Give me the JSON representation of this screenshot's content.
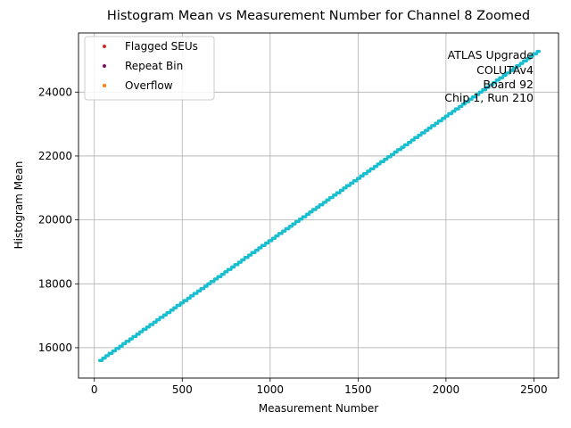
{
  "chart_data": {
    "type": "scatter",
    "title": "Histogram Mean vs Measurement Number for Channel 8 Zoomed",
    "xlabel": "Measurement Number",
    "ylabel": "Histogram Mean",
    "xlim": [
      -90,
      2640
    ],
    "ylim": [
      15050,
      25850
    ],
    "xticks": [
      0,
      500,
      1000,
      1500,
      2000,
      2500
    ],
    "yticks": [
      16000,
      18000,
      20000,
      22000,
      24000
    ],
    "grid": true,
    "legend_position": "upper-left",
    "legend": [
      {
        "label": "Flagged SEUs",
        "color": "#d62728"
      },
      {
        "label": "Repeat Bin",
        "color": "#7b1060"
      },
      {
        "label": "Overflow",
        "color": "#ff7f0e"
      }
    ],
    "annotation": [
      "ATLAS Upgrade",
      "COLUTAv4",
      "Board 92",
      "Chip 1, Run 210"
    ],
    "series": [
      {
        "color": "#17becf",
        "x_start": 30,
        "x_end": 2530,
        "y_start": 15580,
        "y_end": 25290,
        "points": 700
      }
    ]
  }
}
